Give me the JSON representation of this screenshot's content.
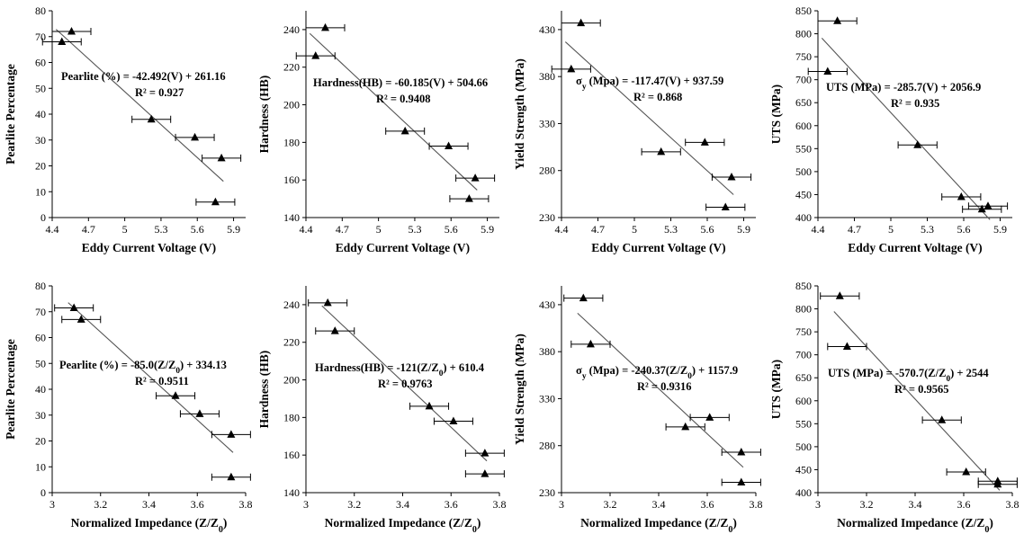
{
  "chart_data": [
    {
      "type": "scatter",
      "xlabel": "Eddy Current Voltage (V)",
      "ylabel": "Pearlite Percentage",
      "xlim": [
        4.4,
        6.0
      ],
      "ylim": [
        0,
        80
      ],
      "xticks": [
        "4.4",
        "4.7",
        "5",
        "5.3",
        "5.6",
        "5.9"
      ],
      "yticks": [
        "0",
        "10",
        "20",
        "30",
        "40",
        "50",
        "60",
        "70",
        "80"
      ],
      "equation": "Pearlite (%) = -42.492(V) + 261.16",
      "r2": "R² = 0.927",
      "x": [
        4.48,
        4.56,
        5.22,
        5.58,
        5.8,
        5.75
      ],
      "y": [
        68,
        72,
        38,
        31,
        23,
        6
      ],
      "xerr": 0.16,
      "fit": [
        -42.492,
        261.16
      ]
    },
    {
      "type": "scatter",
      "xlabel": "Eddy Current Voltage (V)",
      "ylabel": "Hardness (HB)",
      "xlim": [
        4.4,
        6.0
      ],
      "ylim": [
        140,
        250
      ],
      "xticks": [
        "4.4",
        "4.7",
        "5",
        "5.3",
        "5.6",
        "5.9"
      ],
      "yticks": [
        "140",
        "160",
        "180",
        "200",
        "220",
        "240"
      ],
      "equation": "Hardness(HB) = -60.185(V) + 504.66",
      "r2": "R² = 0.9408",
      "x": [
        4.48,
        4.56,
        5.22,
        5.58,
        5.8,
        5.75
      ],
      "y": [
        226,
        241,
        186,
        178,
        161,
        150
      ],
      "xerr": 0.16,
      "fit": [
        -60.185,
        504.66
      ]
    },
    {
      "type": "scatter",
      "xlabel": "Eddy Current Voltage (V)",
      "ylabel": "Yield Strength (MPa)",
      "xlim": [
        4.4,
        6.0
      ],
      "ylim": [
        230,
        450
      ],
      "xticks": [
        "4.4",
        "4.7",
        "5",
        "5.3",
        "5.6",
        "5.9"
      ],
      "yticks": [
        "230",
        "280",
        "330",
        "380",
        "430"
      ],
      "equation": "σy (Mpa) = -117.47(V) + 937.59",
      "r2": "R² = 0.868",
      "x": [
        4.48,
        4.56,
        5.22,
        5.58,
        5.8,
        5.75
      ],
      "y": [
        388,
        437,
        300,
        310,
        273,
        241
      ],
      "xerr": 0.16,
      "fit": [
        -117.47,
        937.59
      ]
    },
    {
      "type": "scatter",
      "xlabel": "Eddy Current Voltage (V)",
      "ylabel": "UTS (MPa)",
      "xlim": [
        4.4,
        6.0
      ],
      "ylim": [
        400,
        850
      ],
      "xticks": [
        "4.4",
        "4.7",
        "5",
        "5.3",
        "5.6",
        "5.9"
      ],
      "yticks": [
        "400",
        "450",
        "500",
        "550",
        "600",
        "650",
        "700",
        "750",
        "800",
        "850"
      ],
      "equation": "UTS (MPa) = -285.7(V) + 2056.9",
      "r2": "R² = 0.935",
      "x": [
        4.48,
        4.56,
        5.22,
        5.58,
        5.8,
        5.75
      ],
      "y": [
        718,
        828,
        558,
        445,
        425,
        418
      ],
      "xerr": 0.16,
      "fit": [
        -285.7,
        2056.9
      ]
    },
    {
      "type": "scatter",
      "xlabel": "Normalized Impedance (Z/Z0)",
      "ylabel": "Pearlite Percentage",
      "xlim": [
        3.0,
        3.8
      ],
      "ylim": [
        0,
        80
      ],
      "xticks": [
        "3",
        "3.2",
        "3.4",
        "3.6",
        "3.8"
      ],
      "yticks": [
        "0",
        "10",
        "20",
        "30",
        "40",
        "50",
        "60",
        "70",
        "80"
      ],
      "equation": "Pearlite (%) = -85.0(Z/Z0) + 334.13",
      "r2": "R² = 0.9511",
      "x": [
        3.09,
        3.12,
        3.51,
        3.61,
        3.74,
        3.74
      ],
      "y": [
        71.5,
        67,
        37.5,
        30.5,
        22.5,
        6
      ],
      "xerr": 0.08,
      "fit": [
        -85.0,
        334.13
      ]
    },
    {
      "type": "scatter",
      "xlabel": "Normalized Impedance (Z/Z0)",
      "ylabel": "Hardness (HB)",
      "xlim": [
        3.0,
        3.8
      ],
      "ylim": [
        140,
        250
      ],
      "xticks": [
        "3",
        "3.2",
        "3.4",
        "3.6",
        "3.8"
      ],
      "yticks": [
        "140",
        "160",
        "180",
        "200",
        "220",
        "240"
      ],
      "equation": "Hardness(HB) = -121(Z/Z0) + 610.4",
      "r2": "R² = 0.9763",
      "x": [
        3.09,
        3.12,
        3.51,
        3.61,
        3.74,
        3.74
      ],
      "y": [
        241,
        226,
        186,
        178,
        161,
        150
      ],
      "xerr": 0.08,
      "fit": [
        -121,
        610.4
      ]
    },
    {
      "type": "scatter",
      "xlabel": "Normalized Impedance (Z/Z0)",
      "ylabel": "Yield Strength (MPa)",
      "xlim": [
        3.0,
        3.8
      ],
      "ylim": [
        230,
        450
      ],
      "xticks": [
        "3",
        "3.2",
        "3.4",
        "3.6",
        "3.8"
      ],
      "yticks": [
        "230",
        "280",
        "330",
        "380",
        "430"
      ],
      "equation": "σy (Mpa) = -240.37(Z/Z0) + 1157.9",
      "r2": "R² = 0.9316",
      "x": [
        3.09,
        3.12,
        3.51,
        3.61,
        3.74,
        3.74
      ],
      "y": [
        437,
        388,
        300,
        310,
        273,
        241
      ],
      "xerr": 0.08,
      "fit": [
        -240.37,
        1157.9
      ]
    },
    {
      "type": "scatter",
      "xlabel": "Normalized Impedance (Z/Z0)",
      "ylabel": "UTS (MPa)",
      "xlim": [
        3.0,
        3.8
      ],
      "ylim": [
        400,
        850
      ],
      "xticks": [
        "3",
        "3.2",
        "3.4",
        "3.6",
        "3.8"
      ],
      "yticks": [
        "400",
        "450",
        "500",
        "550",
        "600",
        "650",
        "700",
        "750",
        "800",
        "850"
      ],
      "equation": "UTS (MPa) = -570.7(Z/Z0) + 2544",
      "r2": "R² = 0.9565",
      "x": [
        3.09,
        3.12,
        3.51,
        3.61,
        3.74,
        3.74
      ],
      "y": [
        828,
        718,
        558,
        445,
        425,
        418
      ],
      "xerr": 0.08,
      "fit": [
        -570.7,
        2544
      ]
    }
  ]
}
